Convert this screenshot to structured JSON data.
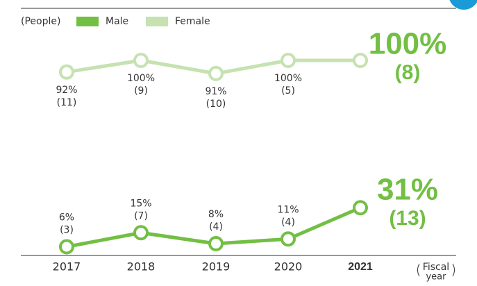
{
  "chart_data": {
    "type": "line",
    "legend_title": "(People)",
    "x_label_lines": [
      "Fiscal",
      "year"
    ],
    "categories": [
      "2017",
      "2018",
      "2019",
      "2020",
      "2021"
    ],
    "series": [
      {
        "name": "Male",
        "color": "#72bf44",
        "values": [
          6,
          15,
          8,
          11,
          31
        ],
        "value_labels": [
          "6%",
          "15%",
          "8%",
          "11%",
          "31%"
        ],
        "counts": [
          3,
          7,
          4,
          4,
          13
        ],
        "count_labels": [
          "(3)",
          "(7)",
          "(4)",
          "(4)",
          "(13)"
        ]
      },
      {
        "name": "Female",
        "color": "#c5e2b0",
        "values": [
          92,
          100,
          91,
          100,
          100
        ],
        "value_labels": [
          "92%",
          "100%",
          "91%",
          "100%",
          "100%"
        ],
        "counts": [
          11,
          9,
          10,
          5,
          8
        ],
        "count_labels": [
          "(11)",
          "(9)",
          "(10)",
          "(5)",
          "(8)"
        ]
      }
    ]
  }
}
